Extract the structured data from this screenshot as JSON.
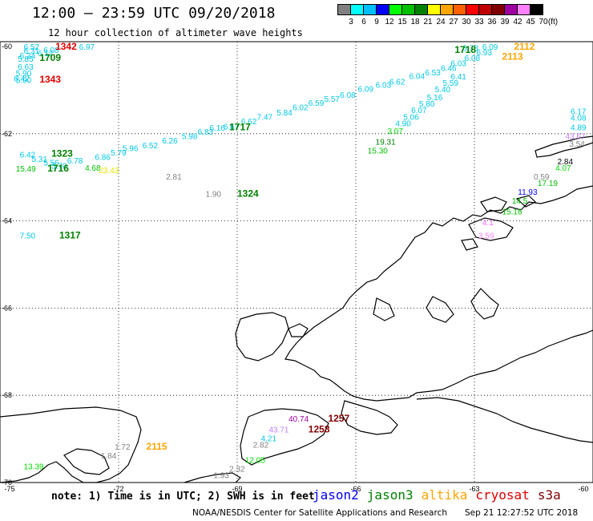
{
  "header": {
    "title": "12:00 – 23:59 UTC 09/20/2018",
    "subtitle": "12 hour collection of altimeter wave heights"
  },
  "legend": {
    "unit": "(ft)",
    "bins": [
      {
        "label": "3",
        "color": "#808080"
      },
      {
        "label": "6",
        "color": "#00ffff"
      },
      {
        "label": "9",
        "color": "#00bfff"
      },
      {
        "label": "12",
        "color": "#0000ff"
      },
      {
        "label": "15",
        "color": "#00ff00"
      },
      {
        "label": "18",
        "color": "#00c000"
      },
      {
        "label": "21",
        "color": "#008000"
      },
      {
        "label": "24",
        "color": "#ffff00"
      },
      {
        "label": "27",
        "color": "#ffa500"
      },
      {
        "label": "30",
        "color": "#ff6000"
      },
      {
        "label": "33",
        "color": "#ff0000"
      },
      {
        "label": "36",
        "color": "#c00000"
      },
      {
        "label": "39",
        "color": "#800000"
      },
      {
        "label": "42",
        "color": "#a000a0"
      },
      {
        "label": "45",
        "color": "#ff80ff"
      },
      {
        "label": "70",
        "color": "#000000"
      }
    ]
  },
  "axes": {
    "lat_labels": [
      "-60",
      "-62",
      "-64",
      "-66",
      "-68",
      "-70"
    ],
    "lon_labels": [
      "-75",
      "-72",
      "-69",
      "-66",
      "-63",
      "-60"
    ]
  },
  "map": {
    "region": "Antarctic Peninsula / Drake Passage",
    "observations": [
      {
        "label": "6.52",
        "color": "#00c8e6",
        "lat": -60.05,
        "lon": -74.4
      },
      {
        "label": "6.31",
        "color": "#00c8e6",
        "lat": -60.17,
        "lon": -74.4
      },
      {
        "label": "6.24",
        "color": "#00c8e6",
        "lat": -60.28,
        "lon": -74.5
      },
      {
        "label": "5.85",
        "color": "#00c8e6",
        "lat": -60.35,
        "lon": -74.55
      },
      {
        "label": "6.63",
        "color": "#00c8e6",
        "lat": -60.53,
        "lon": -74.55
      },
      {
        "label": "5.90",
        "color": "#00c8e6",
        "lat": -60.68,
        "lon": -74.6
      },
      {
        "label": "6.42",
        "color": "#00c8e6",
        "lat": -60.8,
        "lon": -74.65
      },
      {
        "label": "5.90",
        "color": "#00c8e6",
        "lat": -60.84,
        "lon": -74.6
      },
      {
        "label": "6.08",
        "color": "#00c8e6",
        "lat": -60.15,
        "lon": -73.9
      },
      {
        "label": "6.17",
        "color": "#00c8e6",
        "lat": -60.22,
        "lon": -74.05
      },
      {
        "label": "6.97",
        "color": "#00c8e6",
        "lat": -60.0,
        "lon": -73.0
      },
      {
        "label": "1342",
        "color": "#e00000",
        "lat": -60.02,
        "lon": -73.6,
        "time": true
      },
      {
        "label": "1709",
        "color": "#008000",
        "lat": -60.33,
        "lon": -74.0,
        "time": true
      },
      {
        "label": "1343",
        "color": "#e00000",
        "lat": -60.83,
        "lon": -74.0,
        "time": true
      },
      {
        "label": "6.42",
        "color": "#00c8e6",
        "lat": -62.55,
        "lon": -74.5
      },
      {
        "label": "5.31",
        "color": "#00c8e6",
        "lat": -62.65,
        "lon": -74.2
      },
      {
        "label": "5.56",
        "color": "#00c8e6",
        "lat": -62.73,
        "lon": -73.9
      },
      {
        "label": "5.70",
        "color": "#00c8e6",
        "lat": -62.8,
        "lon": -73.7
      },
      {
        "label": "6.78",
        "color": "#00c8e6",
        "lat": -62.68,
        "lon": -73.3
      },
      {
        "label": "6.86",
        "color": "#00c8e6",
        "lat": -62.6,
        "lon": -72.6
      },
      {
        "label": "5.79",
        "color": "#00c8e6",
        "lat": -62.5,
        "lon": -72.2
      },
      {
        "label": "5.96",
        "color": "#00c8e6",
        "lat": -62.4,
        "lon": -71.9
      },
      {
        "label": "6.52",
        "color": "#00c8e6",
        "lat": -62.33,
        "lon": -71.4
      },
      {
        "label": "6.26",
        "color": "#00c8e6",
        "lat": -62.22,
        "lon": -70.9
      },
      {
        "label": "5.98",
        "color": "#00c8e6",
        "lat": -62.12,
        "lon": -70.4
      },
      {
        "label": "6.83",
        "color": "#00c8e6",
        "lat": -62.02,
        "lon": -70.0
      },
      {
        "label": "6.16",
        "color": "#00c8e6",
        "lat": -61.93,
        "lon": -69.7
      },
      {
        "label": "6.67",
        "color": "#00c8e6",
        "lat": -61.9,
        "lon": -69.35
      },
      {
        "label": "6.62",
        "color": "#00c8e6",
        "lat": -61.78,
        "lon": -68.9
      },
      {
        "label": "7.47",
        "color": "#00c8e6",
        "lat": -61.68,
        "lon": -68.5
      },
      {
        "label": "5.84",
        "color": "#00c8e6",
        "lat": -61.58,
        "lon": -68.0
      },
      {
        "label": "6.02",
        "color": "#00c8e6",
        "lat": -61.46,
        "lon": -67.6
      },
      {
        "label": "6.59",
        "color": "#00c8e6",
        "lat": -61.36,
        "lon": -67.2
      },
      {
        "label": "5.57",
        "color": "#00c8e6",
        "lat": -61.27,
        "lon": -66.8
      },
      {
        "label": "6.08",
        "color": "#00c8e6",
        "lat": -61.18,
        "lon": -66.4
      },
      {
        "label": "6.09",
        "color": "#00c8e6",
        "lat": -61.04,
        "lon": -65.95
      },
      {
        "label": "6.03",
        "color": "#00c8e6",
        "lat": -60.95,
        "lon": -65.5
      },
      {
        "label": "6.62",
        "color": "#00c8e6",
        "lat": -60.87,
        "lon": -65.15
      },
      {
        "label": "6.04",
        "color": "#00c8e6",
        "lat": -60.74,
        "lon": -64.65
      },
      {
        "label": "6.53",
        "color": "#00c8e6",
        "lat": -60.66,
        "lon": -64.25
      },
      {
        "label": "6.46",
        "color": "#00c8e6",
        "lat": -60.56,
        "lon": -63.85
      },
      {
        "label": "6.03",
        "color": "#00c8e6",
        "lat": -60.45,
        "lon": -63.6
      },
      {
        "label": "6.08",
        "color": "#00c8e6",
        "lat": -60.33,
        "lon": -63.25
      },
      {
        "label": "6.93",
        "color": "#00c8e6",
        "lat": -60.2,
        "lon": -62.95
      },
      {
        "label": "6.09",
        "color": "#00c8e6",
        "lat": -60.0,
        "lon": -62.8
      },
      {
        "label": "6.78",
        "color": "#00c8e6",
        "lat": -60.1,
        "lon": -63.3
      },
      {
        "label": "6.41",
        "color": "#00c8e6",
        "lat": -60.75,
        "lon": -63.6
      },
      {
        "label": "5.59",
        "color": "#00c8e6",
        "lat": -60.9,
        "lon": -63.8
      },
      {
        "label": "5.40",
        "color": "#00c8e6",
        "lat": -61.05,
        "lon": -64.0
      },
      {
        "label": "5.16",
        "color": "#00c8e6",
        "lat": -61.23,
        "lon": -64.2
      },
      {
        "label": "5.80",
        "color": "#00c8e6",
        "lat": -61.38,
        "lon": -64.4
      },
      {
        "label": "6.07",
        "color": "#00c8e6",
        "lat": -61.53,
        "lon": -64.6
      },
      {
        "label": "5.06",
        "color": "#00c8e6",
        "lat": -61.68,
        "lon": -64.8
      },
      {
        "label": "4.90",
        "color": "#00c8e6",
        "lat": -61.83,
        "lon": -65.0
      },
      {
        "label": "3.07",
        "color": "#00e000",
        "lat": -62.0,
        "lon": -65.2
      },
      {
        "label": "19.31",
        "color": "#008000",
        "lat": -62.25,
        "lon": -65.5
      },
      {
        "label": "15.30",
        "color": "#00c000",
        "lat": -62.45,
        "lon": -65.7
      },
      {
        "label": "1718",
        "color": "#008000",
        "lat": -60.15,
        "lon": -63.5,
        "time": true
      },
      {
        "label": "2112",
        "color": "#ffa500",
        "lat": -59.97,
        "lon": -62.0,
        "time": true
      },
      {
        "label": "2113",
        "color": "#ffa500",
        "lat": -60.3,
        "lon": -62.3,
        "time": true
      },
      {
        "label": "1717",
        "color": "#008000",
        "lat": -61.92,
        "lon": -69.2,
        "time": true
      },
      {
        "label": "1323",
        "color": "#008000",
        "lat": -62.53,
        "lon": -73.7,
        "time": true
      },
      {
        "label": "15.49",
        "color": "#00c000",
        "lat": -62.87,
        "lon": -74.6
      },
      {
        "label": "1716",
        "color": "#008000",
        "lat": -62.87,
        "lon": -73.8,
        "time": true
      },
      {
        "label": "4.68",
        "color": "#00c000",
        "lat": -62.85,
        "lon": -72.85
      },
      {
        "label": "23.43",
        "color": "#e6e600",
        "lat": -62.9,
        "lon": -72.5
      },
      {
        "label": "2.81",
        "color": "#808080",
        "lat": -63.05,
        "lon": -70.8
      },
      {
        "label": "1.90",
        "color": "#808080",
        "lat": -63.45,
        "lon": -69.8
      },
      {
        "label": "1324",
        "color": "#008000",
        "lat": -63.45,
        "lon": -69.0,
        "time": true
      },
      {
        "label": "7.50",
        "color": "#00c8e6",
        "lat": -64.4,
        "lon": -74.5
      },
      {
        "label": "1317",
        "color": "#008000",
        "lat": -64.4,
        "lon": -73.5,
        "time": true
      },
      {
        "label": "43.67",
        "color": "#c080ff",
        "lat": -62.12,
        "lon": -60.7
      },
      {
        "label": "3.54",
        "color": "#808080",
        "lat": -62.3,
        "lon": -60.6
      },
      {
        "label": "2.84",
        "color": "#000000",
        "lat": -62.7,
        "lon": -60.9
      },
      {
        "label": "4.07",
        "color": "#00e000",
        "lat": -62.85,
        "lon": -60.95
      },
      {
        "label": "0.59",
        "color": "#808080",
        "lat": -63.05,
        "lon": -61.5
      },
      {
        "label": "17.19",
        "color": "#00c000",
        "lat": -63.2,
        "lon": -61.4
      },
      {
        "label": "11.93",
        "color": "#0000ff",
        "lat": -63.4,
        "lon": -61.9
      },
      {
        "label": "14.5",
        "color": "#00c000",
        "lat": -63.6,
        "lon": -62.05
      },
      {
        "label": "15.16",
        "color": "#00c000",
        "lat": -63.85,
        "lon": -62.3
      },
      {
        "label": "4.1",
        "color": "#ff60ff",
        "lat": -64.1,
        "lon": -62.8
      },
      {
        "label": "3.59",
        "color": "#ff80ff",
        "lat": -64.4,
        "lon": -62.9
      },
      {
        "label": "6.17",
        "color": "#00c8e6",
        "lat": -61.55,
        "lon": -59.95
      },
      {
        "label": "4.08",
        "color": "#00c8e6",
        "lat": -61.7,
        "lon": -59.95
      },
      {
        "label": "4.89",
        "color": "#00c8e6",
        "lat": -61.92,
        "lon": -60.2
      },
      {
        "label": "40.74",
        "color": "#a000a0",
        "lat": -68.6,
        "lon": -67.7
      },
      {
        "label": "1257",
        "color": "#800000",
        "lat": -68.6,
        "lon": -66.7,
        "time": true
      },
      {
        "label": "43.71",
        "color": "#c080ff",
        "lat": -68.85,
        "lon": -68.2
      },
      {
        "label": "1258",
        "color": "#800000",
        "lat": -68.85,
        "lon": -67.2,
        "time": true
      },
      {
        "label": "4.21",
        "color": "#00c8e6",
        "lat": -69.05,
        "lon": -68.4
      },
      {
        "label": "2.82",
        "color": "#808080",
        "lat": -69.2,
        "lon": -68.6
      },
      {
        "label": "12.05",
        "color": "#00e000",
        "lat": -69.55,
        "lon": -68.8
      },
      {
        "label": "2.32",
        "color": "#808080",
        "lat": -69.75,
        "lon": -69.2
      },
      {
        "label": "1.93",
        "color": "#808080",
        "lat": -69.9,
        "lon": -69.6
      },
      {
        "label": "1.72",
        "color": "#808080",
        "lat": -69.25,
        "lon": -72.1
      },
      {
        "label": "2115",
        "color": "#ffa500",
        "lat": -69.25,
        "lon": -71.3,
        "time": true
      },
      {
        "label": "1.84",
        "color": "#808080",
        "lat": -69.45,
        "lon": -72.45
      },
      {
        "label": "13.39",
        "color": "#00e000",
        "lat": -69.7,
        "lon": -74.4
      }
    ]
  },
  "footer": {
    "note": "note: 1) Time is in UTC; 2) SWH is in feet",
    "satellites": [
      {
        "name": "jason2",
        "color": "#0000ff"
      },
      {
        "name": "jason3",
        "color": "#008000"
      },
      {
        "name": "altika",
        "color": "#ffa500"
      },
      {
        "name": "cryosat",
        "color": "#e00000"
      },
      {
        "name": "s3a",
        "color": "#800000"
      }
    ],
    "credit": "NOAA/NESDIS Center for Satellite Applications and Research",
    "timestamp": "Sep 21 12:27:52 UTC 2018"
  }
}
